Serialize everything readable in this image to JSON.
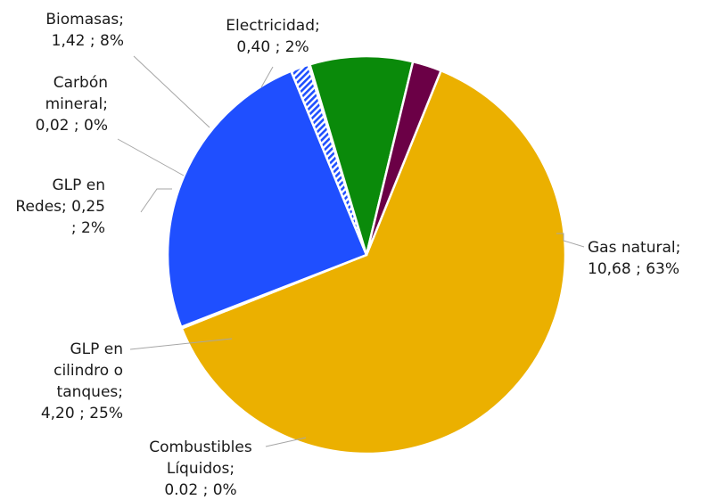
{
  "chart_data": {
    "type": "pie",
    "title": "",
    "legend": "none",
    "slices": [
      {
        "name": "Gas natural",
        "value": 10.68,
        "percent": 63,
        "color": "#ebb000",
        "pattern": "none",
        "label_lines": [
          "Gas natural;",
          "10,68 ; 63%"
        ]
      },
      {
        "name": "Combustibles Líquidos",
        "value": 0.02,
        "percent": 0,
        "color": "#0a7a0a",
        "pattern": "none",
        "label_lines": [
          "Combustibles",
          "Líquidos;",
          "0.02 ; 0%"
        ]
      },
      {
        "name": "GLP en cilindro o tanques",
        "value": 4.2,
        "percent": 25,
        "color": "#1f4fff",
        "pattern": "none",
        "label_lines": [
          "GLP en",
          "cilindro o",
          "tanques;",
          "4,20 ; 25%"
        ]
      },
      {
        "name": "GLP en Redes",
        "value": 0.25,
        "percent": 2,
        "color": "#1f4fff",
        "pattern": "hatch",
        "label_lines": [
          "GLP en",
          "Redes;   0,25",
          "; 2%"
        ]
      },
      {
        "name": "Carbón mineral",
        "value": 0.02,
        "percent": 0,
        "color": "#0a0a0a",
        "pattern": "none",
        "label_lines": [
          "Carbón",
          "mineral;",
          "0,02 ; 0%"
        ]
      },
      {
        "name": "Biomasas",
        "value": 1.42,
        "percent": 8,
        "color": "#0a8a0a",
        "pattern": "none",
        "label_lines": [
          "Biomasas;",
          "1,42 ; 8%"
        ]
      },
      {
        "name": "Electricidad",
        "value": 0.4,
        "percent": 2,
        "color": "#6b0046",
        "pattern": "none",
        "label_lines": [
          "Electricidad;",
          "0,40 ; 2%"
        ]
      }
    ]
  }
}
